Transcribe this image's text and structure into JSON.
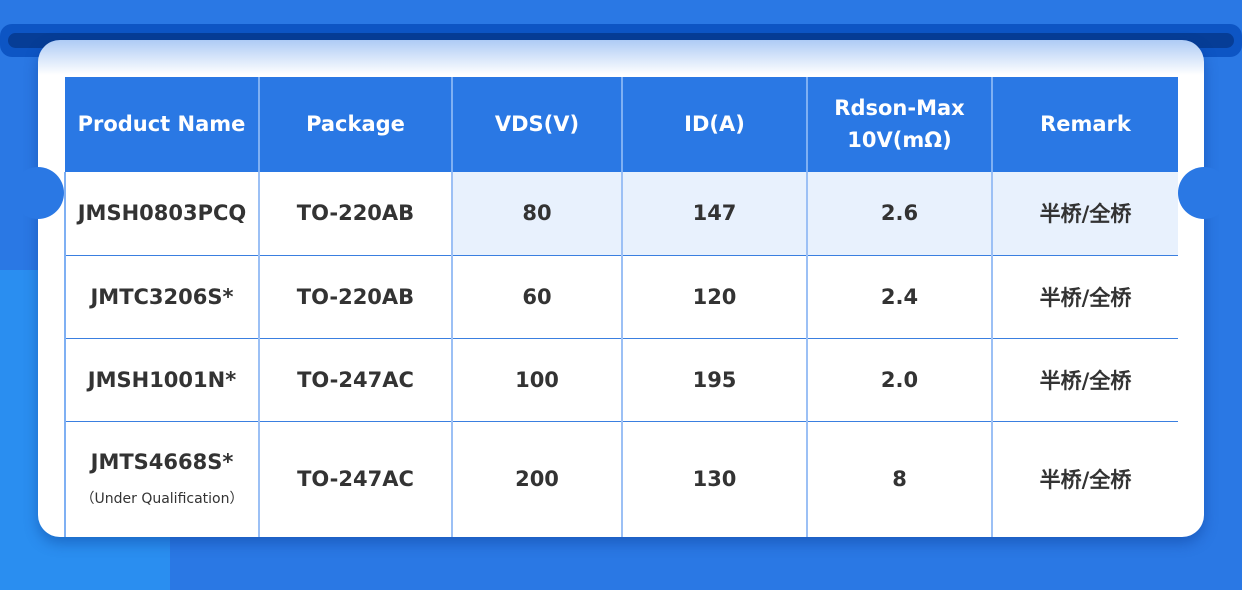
{
  "colors": {
    "background": "#2a78e4",
    "header": "#2a78e4",
    "highlight_row": "#e8f1fd"
  },
  "table": {
    "headers": [
      "Product Name",
      "Package",
      "VDS(V)",
      "ID(A)",
      "Rdson-Max\n10V(mΩ)",
      "Remark"
    ],
    "rows": [
      {
        "name": "JMSH0803PCQ",
        "note": "",
        "package": "TO-220AB",
        "vds": "80",
        "id": "147",
        "rdson": "2.6",
        "remark": "半桥/全桥"
      },
      {
        "name": "JMTC3206S*",
        "note": "",
        "package": "TO-220AB",
        "vds": "60",
        "id": "120",
        "rdson": "2.4",
        "remark": "半桥/全桥"
      },
      {
        "name": "JMSH1001N*",
        "note": "",
        "package": "TO-247AC",
        "vds": "100",
        "id": "195",
        "rdson": "2.0",
        "remark": "半桥/全桥"
      },
      {
        "name": "JMTS4668S*",
        "note": "（Under Qualification）",
        "package": "TO-247AC",
        "vds": "200",
        "id": "130",
        "rdson": "8",
        "remark": "半桥/全桥"
      }
    ]
  }
}
